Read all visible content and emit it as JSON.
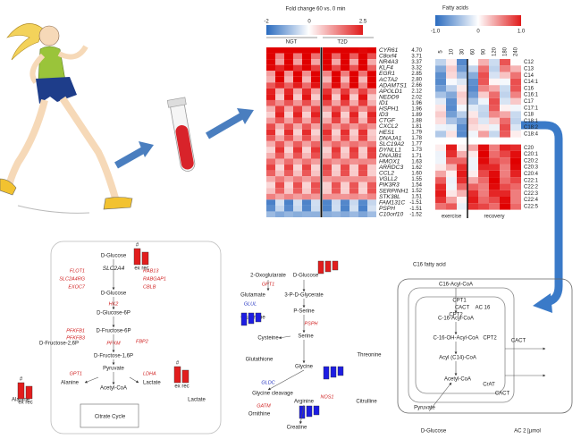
{
  "heatmap_genes": {
    "title": "Fold change 60 vs. 0 min",
    "colorbar_ticks": [
      -2,
      0,
      2.5
    ],
    "groups": [
      "NGT",
      "T2D"
    ],
    "genes": [
      "CYR61",
      "C8orf4",
      "NR4A3",
      "KLF4",
      "EGR1",
      "ACTA2",
      "ADAMTS1",
      "APOLD1",
      "NEDD9",
      "ID1",
      "HSPH1",
      "ID3",
      "CTGF",
      "CXCL2",
      "HES1",
      "DNAJA1",
      "SLC19A2",
      "DYNLL1",
      "DNAJB1",
      "HMOX1",
      "ARRDC3",
      "CCL2",
      "VGLL2",
      "PIK3R3",
      "SERPINH1",
      "STK38L",
      "FAM131C",
      "PSPH",
      "C10orf10"
    ],
    "values": [
      4.7,
      3.71,
      3.37,
      3.32,
      2.85,
      2.8,
      2.66,
      2.12,
      2.02,
      1.96,
      1.96,
      1.89,
      1.88,
      1.81,
      1.79,
      1.78,
      1.77,
      1.73,
      1.71,
      1.63,
      1.62,
      1.6,
      1.55,
      1.54,
      1.52,
      1.51,
      -1.51,
      -1.51,
      -1.52
    ],
    "value_labels": [
      "4.70",
      "3.71",
      "3.37",
      "3.32",
      "2.85",
      "2.80",
      "2.66",
      "2.12",
      "2.02",
      "1.96",
      "1.96",
      "1.89",
      "1.88",
      "1.81",
      "1.79",
      "1.78",
      "1.77",
      "1.73",
      "1.71",
      "1.63",
      "1.62",
      "1.60",
      "1.55",
      "1.54",
      "1.52",
      "1.51",
      "-1.51",
      "-1.51",
      "-1.52"
    ]
  },
  "heatmap_fatty_acids": {
    "title": "Fatty acids",
    "colorbar_ticks": [
      {
        "value": -1,
        "label": "-1.0"
      },
      0,
      {
        "value": 1,
        "label": "1.0"
      }
    ],
    "times": [
      5,
      10,
      30,
      60,
      90,
      120,
      180,
      240
    ],
    "phases": [
      "exercise",
      "recovery"
    ],
    "rows": [
      "C12",
      "C13",
      "C14",
      "C14:1",
      "C16",
      "C16:1",
      "C17",
      "C17:1",
      "C18",
      "C18:1",
      "C18:2",
      "C18:4",
      "C20",
      "C20:1",
      "C20:2",
      "C20:3",
      "C20:4",
      "C22:1",
      "C22:2",
      "C22:3",
      "C22:4",
      "C22:5"
    ]
  },
  "pathway_glycolysis": {
    "labels": [
      "D-Glucose",
      "SLC2A4",
      "FLOT1",
      "SLC2A4RG",
      "EXOC7",
      "RAB13",
      "RABGAP1",
      "CBLB",
      "D-Glucose",
      "HK2",
      "D-Glucose-6P",
      "PFKFB1",
      "PFKFB3",
      "D-Fructose-6P",
      "D-Fructose-2,6P",
      "PFKM",
      "FBP2",
      "D-Fructose-1,6P",
      "Pyruvate",
      "GPT1",
      "LDHA",
      "Alanine",
      "Acetyl-CoA",
      "Lactate",
      "Citrate Cycle",
      "Alanine",
      "Lactate"
    ],
    "bar_axis": [
      "ex",
      "rec"
    ],
    "marker": "#"
  },
  "pathway_amino_acids": {
    "labels": [
      "2-Oxoglutarate",
      "D-Glucose",
      "GPT1",
      "Glutamate",
      "GLUL",
      "Glutamine",
      "3-P-D-Glycerate",
      "P-Serine",
      "PSPH",
      "Serine",
      "Cysteine",
      "Glutathione",
      "Glycine",
      "Threonine",
      "GLDC",
      "Glycine cleavage",
      "GATM",
      "NOS1",
      "Arginine",
      "Citrulline",
      "Ornithine",
      "Creatine"
    ]
  },
  "pathway_fatty_acid": {
    "labels": [
      "C16 fatty acid",
      "C16-Acyl-CoA",
      "CPT1",
      "CACT",
      "AC 16",
      "CPT2",
      "C-16-Acyl-CoA",
      "C-16-OH-Acyl-CoA",
      "CPT2",
      "CACT",
      "Acyl (C14)-CoA",
      "Acetyl-CoA",
      "CrAT",
      "CACT",
      "Pyruvate",
      "D-Glucose",
      "AC 2 [µmol"
    ]
  }
}
